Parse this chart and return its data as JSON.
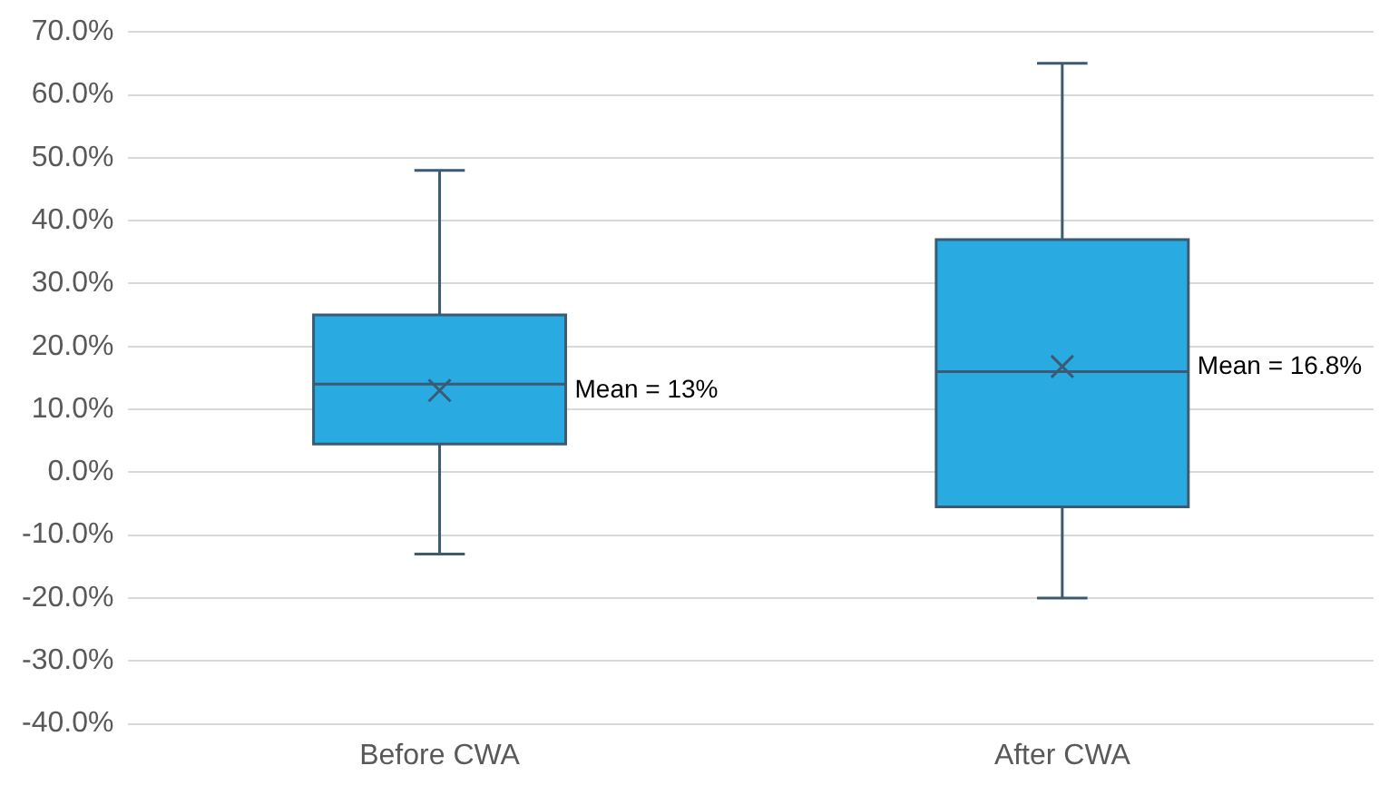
{
  "chart_data": {
    "type": "box",
    "categories": [
      "Before CWA",
      "After CWA"
    ],
    "boxes": [
      {
        "low": -13,
        "q1": 4.5,
        "median": 14,
        "q3": 25,
        "high": 48,
        "mean": 13
      },
      {
        "low": -20,
        "q1": -5.5,
        "median": 16,
        "q3": 37,
        "high": 65,
        "mean": 16.8
      }
    ],
    "color": "#29abe2",
    "marker": "cross",
    "ylim": [
      -40,
      70
    ],
    "yticks": [
      {
        "value": -40,
        "label": "-40.0%"
      },
      {
        "value": -30,
        "label": "-30.0%"
      },
      {
        "value": -20,
        "label": "-20.0%"
      },
      {
        "value": -10,
        "label": "-10.0%"
      },
      {
        "value": 0,
        "label": "0.0%"
      },
      {
        "value": 10,
        "label": "10.0%"
      },
      {
        "value": 20,
        "label": "20.0%"
      },
      {
        "value": 30,
        "label": "30.0%"
      },
      {
        "value": 40,
        "label": "40.0%"
      },
      {
        "value": 50,
        "label": "50.0%"
      },
      {
        "value": 60,
        "label": "60.0%"
      },
      {
        "value": 70,
        "label": "70.0%"
      }
    ],
    "grid": "y",
    "legend": false,
    "annotations": [
      "Mean = 13%",
      "Mean = 16.8%"
    ]
  }
}
